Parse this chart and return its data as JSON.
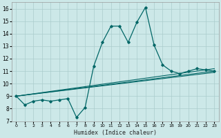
{
  "xlabel": "Humidex (Indice chaleur)",
  "bg_color": "#cce8e8",
  "grid_color": "#aacccc",
  "line_color": "#006666",
  "xlim": [
    -0.5,
    23.5
  ],
  "ylim": [
    7,
    16.5
  ],
  "xticks": [
    0,
    1,
    2,
    3,
    4,
    5,
    6,
    7,
    8,
    9,
    10,
    11,
    12,
    13,
    14,
    15,
    16,
    17,
    18,
    19,
    20,
    21,
    22,
    23
  ],
  "yticks": [
    7,
    8,
    9,
    10,
    11,
    12,
    13,
    14,
    15,
    16
  ],
  "main_x": [
    0,
    1,
    2,
    3,
    4,
    5,
    6,
    7,
    8,
    9,
    10,
    11,
    12,
    13,
    14,
    15,
    16,
    17,
    18,
    19,
    20,
    21,
    22,
    23
  ],
  "main_y": [
    9.0,
    8.3,
    8.6,
    8.7,
    8.6,
    8.7,
    8.8,
    7.3,
    8.1,
    11.4,
    13.3,
    14.6,
    14.6,
    13.3,
    14.9,
    16.1,
    13.1,
    11.5,
    11.0,
    10.8,
    11.0,
    11.2,
    11.1,
    11.0
  ],
  "ref_lines": [
    {
      "x": [
        0,
        23
      ],
      "y": [
        9.0,
        11.2
      ]
    },
    {
      "x": [
        0,
        23
      ],
      "y": [
        9.0,
        10.9
      ]
    },
    {
      "x": [
        0,
        23
      ],
      "y": [
        9.0,
        11.0
      ]
    }
  ]
}
